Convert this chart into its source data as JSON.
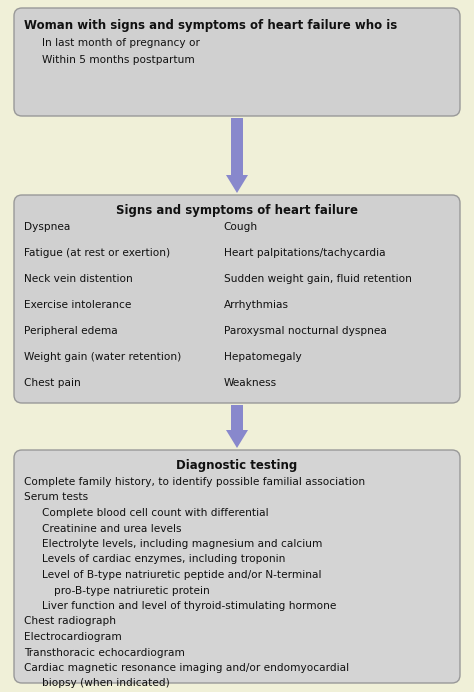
{
  "fig_w": 4.74,
  "fig_h": 6.92,
  "dpi": 100,
  "bg_color": "#f0f0d8",
  "box_bg_top": "#d0d0d0",
  "box_bg_mid": "#d0d0d0",
  "box_bg_bot": "#d4d4d4",
  "box_edge": "#999999",
  "arrow_color": "#8888cc",
  "text_color": "#111111",
  "box1": {
    "title": "Woman with signs and symptoms of heart failure who is",
    "lines": [
      {
        "text": "In last month of pregnancy or",
        "indent": 1
      },
      {
        "text": "Within 5 months postpartum",
        "indent": 1
      }
    ]
  },
  "box2": {
    "title": "Signs and symptoms of heart failure",
    "col1": [
      "Dyspnea",
      "Fatigue (at rest or exertion)",
      "Neck vein distention",
      "Exercise intolerance",
      "Peripheral edema",
      "Weight gain (water retention)",
      "Chest pain"
    ],
    "col2": [
      "Cough",
      "Heart palpitations/tachycardia",
      "Sudden weight gain, fluid retention",
      "Arrhythmias",
      "Paroxysmal nocturnal dyspnea",
      "Hepatomegaly",
      "Weakness"
    ]
  },
  "box3": {
    "title": "Diagnostic testing",
    "lines": [
      {
        "text": "Complete family history, to identify possible familial association",
        "indent": 0
      },
      {
        "text": "Serum tests",
        "indent": 0
      },
      {
        "text": "Complete blood cell count with differential",
        "indent": 1
      },
      {
        "text": "Creatinine and urea levels",
        "indent": 1
      },
      {
        "text": "Electrolyte levels, including magnesium and calcium",
        "indent": 1
      },
      {
        "text": "Levels of cardiac enzymes, including troponin",
        "indent": 1
      },
      {
        "text": "Level of B-type natriuretic peptide and/or N-terminal",
        "indent": 1
      },
      {
        "text": "pro-B-type natriuretic protein",
        "indent": 2
      },
      {
        "text": "Liver function and level of thyroid-stimulating hormone",
        "indent": 1
      },
      {
        "text": "Chest radiograph",
        "indent": 0
      },
      {
        "text": "Electrocardiogram",
        "indent": 0
      },
      {
        "text": "Transthoracic echocardiogram",
        "indent": 0
      },
      {
        "text": "Cardiac magnetic resonance imaging and/or endomyocardial",
        "indent": 0
      },
      {
        "text": "biopsy (when indicated)",
        "indent": 1
      }
    ]
  }
}
